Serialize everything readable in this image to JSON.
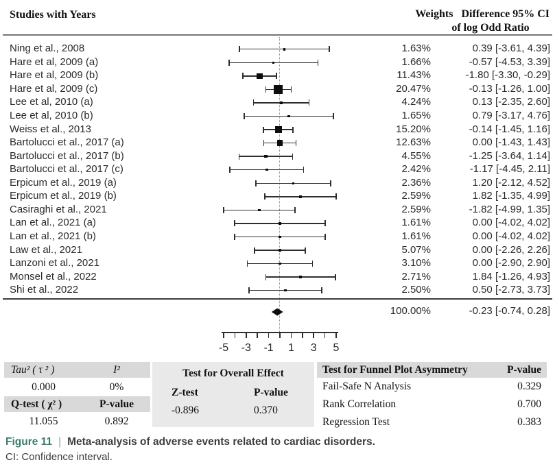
{
  "header": {
    "studies": "Studies with Years",
    "weights": "Weights",
    "diff_line1": "Difference 95% CI",
    "diff_line2": "of log Odd Ratio"
  },
  "chart_data": {
    "type": "forest",
    "title": "Meta-analysis of adverse events related to cardiac disorders",
    "x_axis": {
      "range": [
        -5,
        5
      ],
      "tick_step": 1,
      "labeled_ticks": [
        -5,
        -3,
        -1,
        1,
        3,
        5
      ],
      "zero_reference_line": 0
    },
    "studies": [
      {
        "name": "Ning et al., 2008",
        "weight_pct": 1.63,
        "weight": "1.63%",
        "est": 0.39,
        "lo": -3.61,
        "hi": 4.39,
        "ci": "0.39 [-3.61, 4.39]"
      },
      {
        "name": "Hare et al, 2009 (a)",
        "weight_pct": 1.66,
        "weight": "1.66%",
        "est": -0.57,
        "lo": -4.53,
        "hi": 3.39,
        "ci": "-0.57 [-4.53, 3.39]"
      },
      {
        "name": "Hare et al, 2009 (b)",
        "weight_pct": 11.43,
        "weight": "11.43%",
        "est": -1.8,
        "lo": -3.3,
        "hi": -0.29,
        "ci": "-1.80 [-3.30, -0.29]"
      },
      {
        "name": "Hare et al, 2009 (c)",
        "weight_pct": 20.47,
        "weight": "20.47%",
        "est": -0.13,
        "lo": -1.26,
        "hi": 1.0,
        "ci": "-0.13 [-1.26, 1.00]"
      },
      {
        "name": "Lee et al, 2010 (a)",
        "weight_pct": 4.24,
        "weight": "4.24%",
        "est": 0.13,
        "lo": -2.35,
        "hi": 2.6,
        "ci": "0.13 [-2.35, 2.60]"
      },
      {
        "name": "Lee et al, 2010 (b)",
        "weight_pct": 1.65,
        "weight": "1.65%",
        "est": 0.79,
        "lo": -3.17,
        "hi": 4.76,
        "ci": "0.79 [-3.17, 4.76]"
      },
      {
        "name": "Weiss et al., 2013",
        "weight_pct": 15.2,
        "weight": "15.20%",
        "est": -0.14,
        "lo": -1.45,
        "hi": 1.16,
        "ci": "-0.14 [-1.45, 1.16]"
      },
      {
        "name": "Bartolucci et al., 2017 (a)",
        "weight_pct": 12.63,
        "weight": "12.63%",
        "est": 0.0,
        "lo": -1.43,
        "hi": 1.43,
        "ci": "0.00 [-1.43, 1.43]"
      },
      {
        "name": "Bartolucci et al., 2017 (b)",
        "weight_pct": 4.55,
        "weight": "4.55%",
        "est": -1.25,
        "lo": -3.64,
        "hi": 1.14,
        "ci": "-1.25 [-3.64, 1.14]"
      },
      {
        "name": "Bartolucci et al., 2017 (c)",
        "weight_pct": 2.42,
        "weight": "2.42%",
        "est": -1.17,
        "lo": -4.45,
        "hi": 2.11,
        "ci": "-1.17 [-4.45, 2.11]"
      },
      {
        "name": "Erpicum et al., 2019 (a)",
        "weight_pct": 2.36,
        "weight": "2.36%",
        "est": 1.2,
        "lo": -2.12,
        "hi": 4.52,
        "ci": "1.20 [-2.12, 4.52]"
      },
      {
        "name": "Erpicum et al., 2019 (b)",
        "weight_pct": 2.59,
        "weight": "2.59%",
        "est": 1.82,
        "lo": -1.35,
        "hi": 4.99,
        "ci": "1.82 [-1.35, 4.99]"
      },
      {
        "name": "Casiraghi et al., 2021",
        "weight_pct": 2.59,
        "weight": "2.59%",
        "est": -1.82,
        "lo": -4.99,
        "hi": 1.35,
        "ci": "-1.82 [-4.99, 1.35]"
      },
      {
        "name": "Lan et al., 2021 (a)",
        "weight_pct": 1.61,
        "weight": "1.61%",
        "est": 0.0,
        "lo": -4.02,
        "hi": 4.02,
        "ci": "0.00 [-4.02, 4.02]"
      },
      {
        "name": "Lan et al., 2021 (b)",
        "weight_pct": 1.61,
        "weight": "1.61%",
        "est": 0.0,
        "lo": -4.02,
        "hi": 4.02,
        "ci": "0.00 [-4.02, 4.02]"
      },
      {
        "name": "Law et al., 2021",
        "weight_pct": 5.07,
        "weight": "5.07%",
        "est": 0.0,
        "lo": -2.26,
        "hi": 2.26,
        "ci": "0.00 [-2.26, 2.26]"
      },
      {
        "name": "Lanzoni et al., 2021",
        "weight_pct": 3.1,
        "weight": "3.10%",
        "est": 0.0,
        "lo": -2.9,
        "hi": 2.9,
        "ci": "0.00 [-2.90, 2.90]"
      },
      {
        "name": "Monsel et al., 2022",
        "weight_pct": 2.71,
        "weight": "2.71%",
        "est": 1.84,
        "lo": -1.26,
        "hi": 4.93,
        "ci": "1.84 [-1.26, 4.93]"
      },
      {
        "name": "Shi et al., 2022",
        "weight_pct": 2.5,
        "weight": "2.50%",
        "est": 0.5,
        "lo": -2.73,
        "hi": 3.73,
        "ci": "0.50 [-2.73, 3.73]"
      }
    ],
    "summary": {
      "weight_pct": 100.0,
      "weight": "100.00%",
      "est": -0.23,
      "lo": -0.74,
      "hi": 0.28,
      "ci": "-0.23 [-0.74, 0.28]"
    }
  },
  "stats": {
    "heterogeneity": {
      "tau_label": "Tau² ( τ ² )",
      "i2_label": "I²",
      "tau": "0.000",
      "i2": "0%",
      "q_label": "Q-test ( χ² )",
      "p_label": "P-value",
      "q": "11.055",
      "p": "0.892"
    },
    "overall": {
      "title": "Test for Overall Effect",
      "z_label": "Z-test",
      "p_label": "P-value",
      "z": "-0.896",
      "p": "0.370"
    },
    "funnel": {
      "title": "Test for Funnel Plot Asymmetry",
      "p_label": "P-value",
      "rows": [
        {
          "label": "Fail-Safe N Analysis",
          "value": "0.329"
        },
        {
          "label": "Rank Correlation",
          "value": "0.700"
        },
        {
          "label": "Regression Test",
          "value": "0.383"
        }
      ]
    }
  },
  "caption": {
    "tag": "Figure 11",
    "sep": "|",
    "title": "Meta-analysis of adverse events related to cardiac disorders.",
    "note": "CI: Confidence interval."
  },
  "colors": {
    "accent": "#377d6e",
    "table_header_bg": "#d9d9d9",
    "table_block_bg": "#e9e9e9"
  }
}
